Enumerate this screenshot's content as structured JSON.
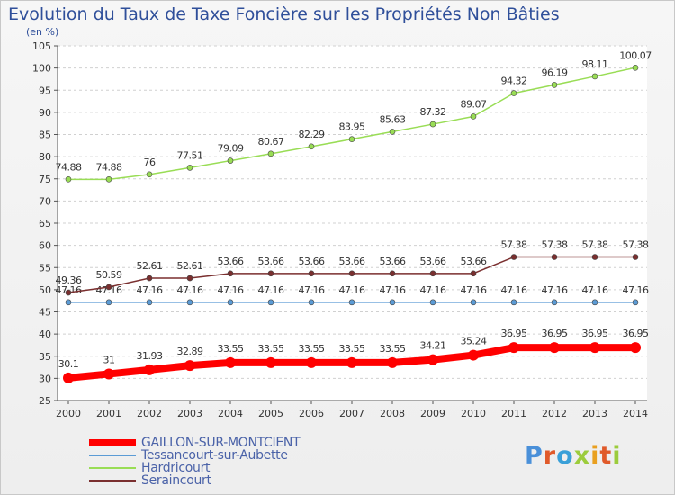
{
  "title": "Evolution du Taux de Taxe Foncière sur les Propriétés Non Bâties",
  "unit": "(en %)",
  "logo_text": "Proxiti",
  "logo_colors": [
    "#4a90d9",
    "#e05a2a",
    "#3aa0d8",
    "#9ccc3c",
    "#e9a020",
    "#e05a2a",
    "#9ccc3c"
  ],
  "chart_data": {
    "type": "line",
    "x": [
      2000,
      2001,
      2002,
      2003,
      2004,
      2005,
      2006,
      2007,
      2008,
      2009,
      2010,
      2011,
      2012,
      2013,
      2014
    ],
    "ylim": [
      25,
      105
    ],
    "yticks": [
      25,
      30,
      35,
      40,
      45,
      50,
      55,
      60,
      65,
      70,
      75,
      80,
      85,
      90,
      95,
      100,
      105
    ],
    "grid": "horizontal dashed",
    "legend_position": "bottom-left",
    "series": [
      {
        "name": "GAILLON-SUR-MONTCIENT",
        "color": "#ff0000",
        "values": [
          30.1,
          31,
          31.93,
          32.89,
          33.55,
          33.55,
          33.55,
          33.55,
          33.55,
          34.21,
          35.24,
          36.95,
          36.95,
          36.95,
          36.95
        ],
        "labels": [
          "30.1",
          "31",
          "31.93",
          "32.89",
          "33.55",
          "33.55",
          "33.55",
          "33.55",
          "33.55",
          "34.21",
          "35.24",
          "36.95",
          "36.95",
          "36.95",
          "36.95"
        ]
      },
      {
        "name": "Tessancourt-sur-Aubette",
        "color": "#5b9bd5",
        "values": [
          47.16,
          47.16,
          47.16,
          47.16,
          47.16,
          47.16,
          47.16,
          47.16,
          47.16,
          47.16,
          47.16,
          47.16,
          47.16,
          47.16,
          47.16
        ],
        "labels": [
          "47.16",
          "47.16",
          "47.16",
          "47.16",
          "47.16",
          "47.16",
          "47.16",
          "47.16",
          "47.16",
          "47.16",
          "47.16",
          "47.16",
          "47.16",
          "47.16",
          "47.16"
        ]
      },
      {
        "name": "Hardricourt",
        "color": "#99dd55",
        "values": [
          74.88,
          74.88,
          76,
          77.51,
          79.09,
          80.67,
          82.29,
          83.95,
          85.63,
          87.32,
          89.07,
          94.32,
          96.19,
          98.11,
          100.07
        ],
        "labels": [
          "74.88",
          "74.88",
          "76",
          "77.51",
          "79.09",
          "80.67",
          "82.29",
          "83.95",
          "85.63",
          "87.32",
          "89.07",
          "94.32",
          "96.19",
          "98.11",
          "100.07"
        ]
      },
      {
        "name": "Seraincourt",
        "color": "#7a2f2f",
        "values": [
          49.36,
          50.59,
          52.61,
          52.61,
          53.66,
          53.66,
          53.66,
          53.66,
          53.66,
          53.66,
          53.66,
          57.38,
          57.38,
          57.38,
          57.38
        ],
        "labels": [
          "49.36",
          "50.59",
          "52.61",
          "52.61",
          "53.66",
          "53.66",
          "53.66",
          "53.66",
          "53.66",
          "53.66",
          "53.66",
          "57.38",
          "57.38",
          "57.38",
          "57.38"
        ]
      }
    ]
  }
}
